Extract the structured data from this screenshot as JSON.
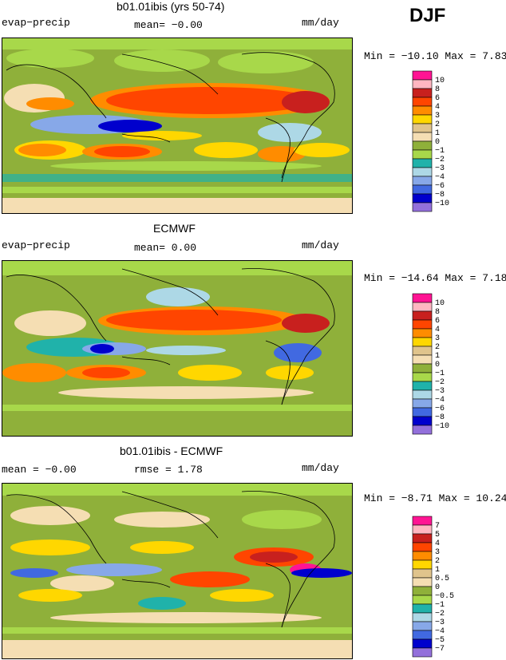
{
  "season": "DJF",
  "panels": [
    {
      "title": "b01.01ibis (yrs 50-74)",
      "left_label": "evap−precip",
      "center_label": "mean=  −0.00",
      "units": "mm/day",
      "minmax": "Min = −10.10 Max =   7.83"
    },
    {
      "title": "ECMWF",
      "left_label": "evap−precip",
      "center_label": "mean=   0.00",
      "units": "mm/day",
      "minmax": "Min = −14.64 Max =   7.18"
    },
    {
      "title": "b01.01ibis - ECMWF",
      "left_label": "mean =  −0.00",
      "center_label": "rmse =   1.78",
      "units": "mm/day",
      "minmax": "Min =  −8.71 Max =  10.24"
    }
  ],
  "chart_data": [
    {
      "type": "heatmap",
      "title": "b01.01ibis (yrs 50-74)",
      "field": "evap−precip",
      "units": "mm/day",
      "mean": -0.0,
      "min": -10.1,
      "max": 7.83,
      "colorbar_levels": [
        "10",
        "8",
        "6",
        "4",
        "3",
        "2",
        "1",
        "0",
        "−1",
        "−2",
        "−3",
        "−4",
        "−6",
        "−8",
        "−10"
      ],
      "colorbar_colors": [
        "#ff1493",
        "#ffb6c1",
        "#c8201e",
        "#ff4500",
        "#ff8c00",
        "#ffd700",
        "#e0c48c",
        "#f5deb3",
        "#8fb03a",
        "#a8d84a",
        "#20b2aa",
        "#add8e6",
        "#87a8e8",
        "#4169e1",
        "#0000cd",
        "#9370db"
      ]
    },
    {
      "type": "heatmap",
      "title": "ECMWF",
      "field": "evap−precip",
      "units": "mm/day",
      "mean": 0.0,
      "min": -14.64,
      "max": 7.18,
      "colorbar_levels": [
        "10",
        "8",
        "6",
        "4",
        "3",
        "2",
        "1",
        "0",
        "−1",
        "−2",
        "−3",
        "−4",
        "−6",
        "−8",
        "−10"
      ],
      "colorbar_colors": [
        "#ff1493",
        "#ffb6c1",
        "#c8201e",
        "#ff4500",
        "#ff8c00",
        "#ffd700",
        "#e0c48c",
        "#f5deb3",
        "#8fb03a",
        "#a8d84a",
        "#20b2aa",
        "#add8e6",
        "#87a8e8",
        "#4169e1",
        "#0000cd",
        "#9370db"
      ]
    },
    {
      "type": "heatmap",
      "title": "b01.01ibis - ECMWF",
      "units": "mm/day",
      "mean": -0.0,
      "rmse": 1.78,
      "min": -8.71,
      "max": 10.24,
      "colorbar_levels": [
        "7",
        "5",
        "4",
        "3",
        "2",
        "1",
        "0.5",
        "0",
        "−0.5",
        "−1",
        "−2",
        "−3",
        "−4",
        "−5",
        "−7"
      ],
      "colorbar_colors": [
        "#ff1493",
        "#ffb6c1",
        "#c8201e",
        "#ff4500",
        "#ff8c00",
        "#ffd700",
        "#e0c48c",
        "#f5deb3",
        "#8fb03a",
        "#a8d84a",
        "#20b2aa",
        "#add8e6",
        "#87a8e8",
        "#4169e1",
        "#0000cd",
        "#9370db"
      ]
    }
  ]
}
